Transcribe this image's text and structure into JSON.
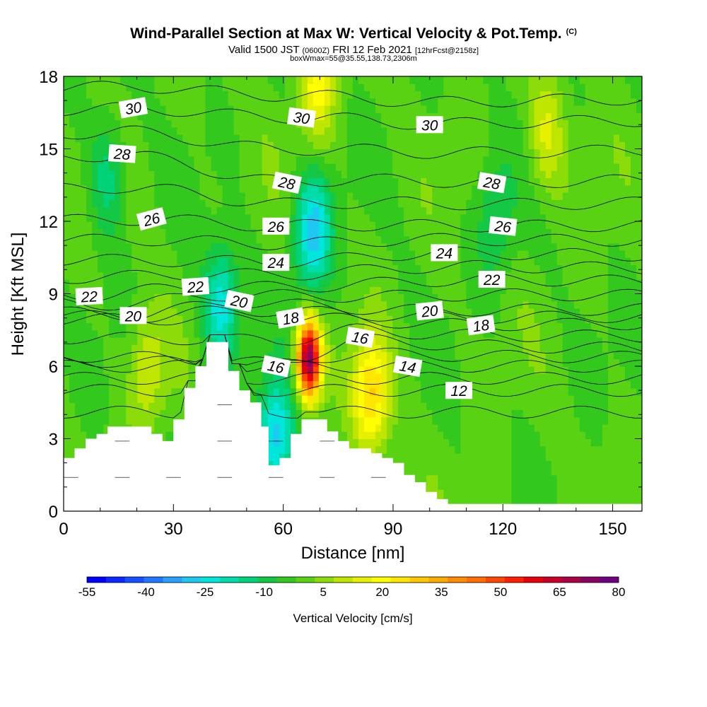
{
  "header": {
    "title": "Wind-Parallel Section at Max W: Vertical Velocity & Pot.Temp.",
    "copyright": "(C)",
    "valid_prefix": "Valid 1500 JST",
    "valid_utc": "(0600Z)",
    "valid_date": "FRI 12 Feb 2021",
    "forecast": "[12hrFcst@2158z]",
    "box_info": "boxWmax=55@35.55,138.73,2306m"
  },
  "chart_data": {
    "type": "heatmap",
    "title": "Wind-Parallel Section at Max W: Vertical Velocity & Pot.Temp.",
    "xlabel": "Distance [nm]",
    "ylabel": "Height [Kft MSL]",
    "xlim": [
      0,
      158
    ],
    "ylim": [
      0,
      18
    ],
    "x_ticks": [
      0,
      30,
      60,
      90,
      120,
      150
    ],
    "y_ticks": [
      0,
      3,
      6,
      9,
      12,
      15,
      18
    ],
    "colorbar": {
      "label": "Vertical Velocity [cm/s]",
      "tick_labels": [
        "-55",
        "-40",
        "-25",
        "-10",
        "5",
        "20",
        "35",
        "50",
        "65",
        "80"
      ],
      "levels": [
        -55,
        -50,
        -45,
        -40,
        -35,
        -30,
        -25,
        -20,
        -15,
        -10,
        -5,
        0,
        5,
        10,
        15,
        20,
        25,
        30,
        35,
        40,
        45,
        50,
        55,
        60,
        65,
        70,
        75,
        80
      ],
      "colors": [
        "#0000ff",
        "#0a28ff",
        "#1450ff",
        "#1e78ff",
        "#28a0ff",
        "#1ec8f0",
        "#00e6dc",
        "#00dcaa",
        "#00d278",
        "#14c846",
        "#32c81e",
        "#5ad214",
        "#8cdc0a",
        "#bee600",
        "#e6f000",
        "#ffff00",
        "#ffe600",
        "#ffc800",
        "#ffaa00",
        "#ff8c00",
        "#ff6e00",
        "#ff4600",
        "#ff1e00",
        "#e6000a",
        "#c80028",
        "#aa0046",
        "#8c0064",
        "#6e0082"
      ]
    },
    "terrain_profile": {
      "x": [
        0,
        3,
        6,
        9,
        12,
        14,
        18,
        22,
        24,
        27,
        30,
        33,
        36,
        39,
        42,
        45,
        48,
        51,
        54,
        56,
        59,
        62,
        65,
        69,
        72,
        75,
        78,
        81,
        84,
        87,
        90,
        93,
        96,
        99,
        102,
        105,
        108,
        111,
        114,
        120,
        130,
        140,
        150,
        158
      ],
      "height": [
        2.2,
        2.6,
        3.0,
        3.2,
        3.5,
        3.5,
        3.5,
        3.5,
        3.2,
        2.9,
        3.8,
        5.1,
        6.0,
        7.0,
        7.0,
        5.8,
        5.0,
        4.5,
        3.5,
        1.9,
        2.2,
        3.2,
        3.8,
        3.8,
        3.3,
        2.9,
        2.6,
        2.6,
        2.4,
        2.2,
        2.0,
        1.5,
        1.2,
        0.8,
        0.5,
        0.3,
        0.3,
        0.3,
        0.3,
        0.3,
        0.3,
        0.3,
        0.3,
        0.3
      ]
    },
    "vertical_velocity_features": [
      {
        "x": 67,
        "height": 6.3,
        "peak_cm_s": 80
      },
      {
        "x": 84,
        "height": 4.8,
        "peak_cm_s": 30
      },
      {
        "x": 69,
        "height": 17.5,
        "peak_cm_s": 20
      },
      {
        "x": 132,
        "height": 15.5,
        "peak_cm_s": 15
      },
      {
        "x": 23,
        "height": 5.8,
        "peak_cm_s": 15
      },
      {
        "x": 58,
        "height": 3.0,
        "peak_cm_s": -30
      },
      {
        "x": 68,
        "height": 11.5,
        "peak_cm_s": -30
      },
      {
        "x": 43,
        "height": 8.5,
        "peak_cm_s": -25
      },
      {
        "x": 12,
        "height": 13.8,
        "peak_cm_s": -15
      },
      {
        "x": 118,
        "height": 12.0,
        "peak_cm_s": -12
      }
    ],
    "pot_temp_labels": [
      {
        "text": "30",
        "x": 19,
        "height": 16.7
      },
      {
        "text": "30",
        "x": 65,
        "height": 16.3
      },
      {
        "text": "30",
        "x": 100,
        "height": 16.0
      },
      {
        "text": "28",
        "x": 16,
        "height": 14.8
      },
      {
        "text": "28",
        "x": 61,
        "height": 13.6
      },
      {
        "text": "28",
        "x": 117,
        "height": 13.6
      },
      {
        "text": "26",
        "x": 24,
        "height": 12.1
      },
      {
        "text": "26",
        "x": 58,
        "height": 11.8
      },
      {
        "text": "26",
        "x": 120,
        "height": 11.8
      },
      {
        "text": "24",
        "x": 58,
        "height": 10.3
      },
      {
        "text": "24",
        "x": 104,
        "height": 10.7
      },
      {
        "text": "22",
        "x": 7,
        "height": 8.9
      },
      {
        "text": "22",
        "x": 36,
        "height": 9.3
      },
      {
        "text": "22",
        "x": 117,
        "height": 9.6
      },
      {
        "text": "20",
        "x": 19,
        "height": 8.1
      },
      {
        "text": "20",
        "x": 48,
        "height": 8.7
      },
      {
        "text": "20",
        "x": 100,
        "height": 8.3
      },
      {
        "text": "18",
        "x": 62,
        "height": 8.0
      },
      {
        "text": "18",
        "x": 114,
        "height": 7.7
      },
      {
        "text": "16",
        "x": 58,
        "height": 6.0
      },
      {
        "text": "16",
        "x": 81,
        "height": 7.2
      },
      {
        "text": "14",
        "x": 94,
        "height": 6.0
      },
      {
        "text": "12",
        "x": 108,
        "height": 5.0
      }
    ]
  }
}
